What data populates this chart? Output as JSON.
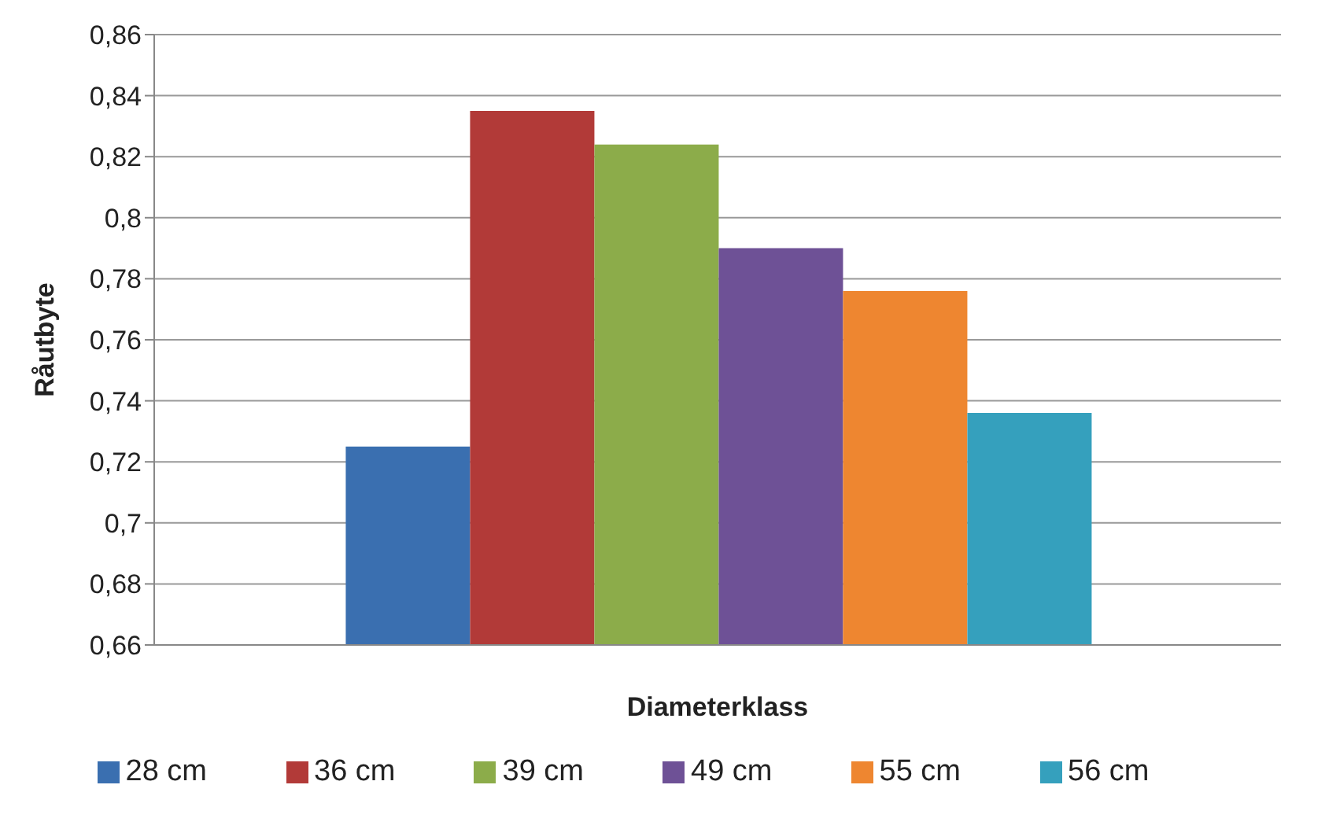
{
  "chart_data": {
    "type": "bar",
    "xlabel": "Diameterklass",
    "ylabel": "Råutbyte",
    "categories": [
      null
    ],
    "series": [
      {
        "name": "28 cm",
        "color": "#3a6fb0",
        "values": [
          0.725
        ]
      },
      {
        "name": "36 cm",
        "color": "#b23a38",
        "values": [
          0.835
        ]
      },
      {
        "name": "39 cm",
        "color": "#8cac4a",
        "values": [
          0.824
        ]
      },
      {
        "name": "49 cm",
        "color": "#6e5196",
        "values": [
          0.79
        ]
      },
      {
        "name": "55 cm",
        "color": "#ee8630",
        "values": [
          0.776
        ]
      },
      {
        "name": "56 cm",
        "color": "#35a0bd",
        "values": [
          0.736
        ]
      }
    ],
    "ylim": [
      0.66,
      0.86
    ],
    "yticks": [
      {
        "value": 0.66,
        "label": "0,66"
      },
      {
        "value": 0.68,
        "label": "0,68"
      },
      {
        "value": 0.7,
        "label": "0,7"
      },
      {
        "value": 0.72,
        "label": "0,72"
      },
      {
        "value": 0.74,
        "label": "0,74"
      },
      {
        "value": 0.76,
        "label": "0,76"
      },
      {
        "value": 0.78,
        "label": "0,78"
      },
      {
        "value": 0.8,
        "label": "0,8"
      },
      {
        "value": 0.82,
        "label": "0,82"
      },
      {
        "value": 0.84,
        "label": "0,84"
      },
      {
        "value": 0.86,
        "label": "0,86"
      }
    ],
    "grid": "y",
    "legend": "bottom"
  }
}
